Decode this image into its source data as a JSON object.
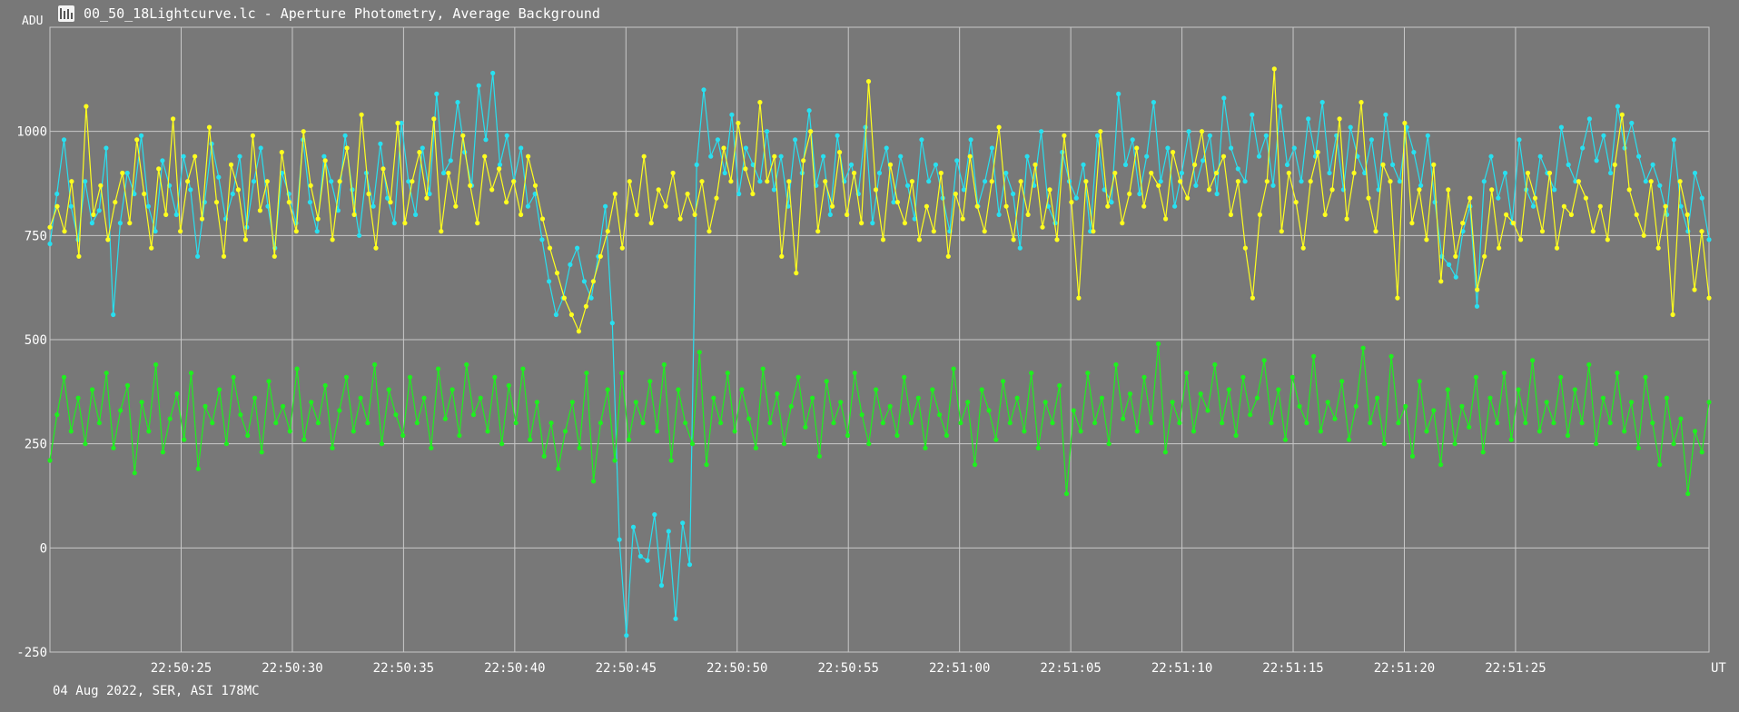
{
  "window": {
    "title": "00_50_18Lightcurve.lc - Aperture Photometry, Average Background",
    "footer": "04 Aug 2022, SER, ASI 178MC"
  },
  "colors": {
    "background": "#787878",
    "grid": "#c8c8c8",
    "text": "#ffffff",
    "series_cyan": "#28e0f0",
    "series_yellow": "#ffff1e",
    "series_green": "#1ef01e"
  },
  "chart_data": {
    "type": "line",
    "title": "",
    "ylabel": "ADU",
    "xlabel": "UT",
    "ylim": [
      -250,
      1250
    ],
    "y_ticks": [
      -250,
      0,
      250,
      500,
      750,
      1000
    ],
    "x_range": [
      "22:50:19.1",
      "22:51:33.7"
    ],
    "x_ticks": [
      "22:50:25",
      "22:50:30",
      "22:50:35",
      "22:50:40",
      "22:50:45",
      "22:50:50",
      "22:50:55",
      "22:51:00",
      "22:51:05",
      "22:51:10",
      "22:51:15",
      "22:51:20",
      "22:51:25"
    ],
    "grid": true,
    "legend": "none",
    "series": [
      {
        "color": "cyan",
        "x_start": "22:50:19.1",
        "x_end": "22:51:33.7",
        "values": [
          730,
          850,
          980,
          820,
          740,
          880,
          780,
          810,
          960,
          560,
          780,
          900,
          850,
          990,
          820,
          760,
          930,
          870,
          800,
          940,
          860,
          700,
          830,
          970,
          890,
          790,
          850,
          940,
          770,
          880,
          960,
          820,
          720,
          900,
          850,
          780,
          980,
          830,
          760,
          940,
          880,
          810,
          990,
          860,
          750,
          900,
          820,
          970,
          840,
          780,
          1020,
          880,
          800,
          960,
          850,
          1090,
          900,
          930,
          1070,
          950,
          870,
          1110,
          980,
          1140,
          920,
          990,
          880,
          960,
          820,
          850,
          740,
          640,
          560,
          600,
          680,
          720,
          640,
          600,
          700,
          820,
          540,
          20,
          -210,
          50,
          -20,
          -30,
          80,
          -90,
          40,
          -170,
          60,
          -40,
          920,
          1100,
          940,
          980,
          900,
          1040,
          850,
          960,
          920,
          880,
          1000,
          860,
          940,
          820,
          980,
          900,
          1050,
          870,
          940,
          800,
          990,
          880,
          920,
          850,
          1010,
          780,
          900,
          960,
          830,
          940,
          870,
          790,
          980,
          880,
          920,
          840,
          760,
          930,
          860,
          980,
          820,
          880,
          960,
          800,
          900,
          850,
          720,
          940,
          870,
          1000,
          820,
          780,
          950,
          880,
          840,
          920,
          760,
          990,
          860,
          830,
          1090,
          920,
          980,
          850,
          940,
          1070,
          880,
          960,
          820,
          900,
          1000,
          870,
          930,
          990,
          850,
          1080,
          960,
          910,
          880,
          1040,
          940,
          990,
          870,
          1060,
          920,
          960,
          880,
          1030,
          940,
          1070,
          900,
          990,
          860,
          1010,
          940,
          900,
          980,
          860,
          1040,
          920,
          880,
          1010,
          950,
          870,
          990,
          830,
          700,
          680,
          650,
          760,
          820,
          580,
          880,
          940,
          840,
          900,
          780,
          980,
          860,
          820,
          940,
          900,
          860,
          1010,
          920,
          880,
          960,
          1030,
          930,
          990,
          900,
          1060,
          960,
          1020,
          940,
          880,
          920,
          870,
          800,
          980,
          820,
          760,
          900,
          840,
          740
        ]
      },
      {
        "color": "yellow",
        "x_start": "22:50:19.1",
        "x_end": "22:51:33.7",
        "values": [
          770,
          820,
          760,
          880,
          700,
          1060,
          800,
          870,
          740,
          830,
          900,
          780,
          980,
          850,
          720,
          910,
          800,
          1030,
          760,
          880,
          940,
          790,
          1010,
          830,
          700,
          920,
          860,
          740,
          990,
          810,
          880,
          700,
          950,
          830,
          760,
          1000,
          870,
          790,
          930,
          740,
          880,
          960,
          800,
          1040,
          850,
          720,
          910,
          830,
          1020,
          780,
          880,
          950,
          840,
          1030,
          760,
          900,
          820,
          990,
          870,
          780,
          940,
          860,
          910,
          830,
          880,
          800,
          940,
          870,
          790,
          720,
          660,
          600,
          560,
          520,
          580,
          640,
          700,
          760,
          850,
          720,
          880,
          800,
          940,
          780,
          860,
          820,
          900,
          790,
          850,
          800,
          880,
          760,
          840,
          960,
          880,
          1020,
          910,
          850,
          1070,
          880,
          940,
          700,
          880,
          660,
          930,
          1000,
          760,
          880,
          820,
          950,
          800,
          900,
          780,
          1120,
          860,
          740,
          920,
          830,
          780,
          880,
          740,
          820,
          760,
          900,
          700,
          850,
          790,
          940,
          820,
          760,
          880,
          1010,
          820,
          740,
          880,
          800,
          920,
          770,
          860,
          740,
          990,
          830,
          600,
          880,
          760,
          1000,
          820,
          900,
          780,
          850,
          960,
          820,
          900,
          870,
          790,
          950,
          880,
          840,
          920,
          1000,
          860,
          900,
          940,
          800,
          880,
          720,
          600,
          800,
          880,
          1150,
          760,
          900,
          830,
          720,
          880,
          950,
          800,
          860,
          1030,
          790,
          900,
          1070,
          840,
          760,
          920,
          880,
          600,
          1020,
          780,
          860,
          740,
          920,
          640,
          860,
          700,
          780,
          840,
          620,
          700,
          860,
          720,
          800,
          780,
          740,
          900,
          840,
          760,
          900,
          720,
          820,
          800,
          880,
          840,
          760,
          820,
          740,
          920,
          1040,
          860,
          800,
          750,
          880,
          720,
          820,
          560,
          880,
          800,
          620,
          760,
          600
        ]
      },
      {
        "color": "green",
        "x_start": "22:50:19.1",
        "x_end": "22:51:33.7",
        "values": [
          210,
          320,
          410,
          280,
          360,
          250,
          380,
          300,
          420,
          240,
          330,
          390,
          180,
          350,
          280,
          440,
          230,
          310,
          370,
          260,
          420,
          190,
          340,
          300,
          380,
          250,
          410,
          320,
          270,
          360,
          230,
          400,
          300,
          340,
          280,
          430,
          260,
          350,
          300,
          390,
          240,
          330,
          410,
          280,
          360,
          300,
          440,
          250,
          380,
          320,
          270,
          410,
          300,
          360,
          240,
          430,
          310,
          380,
          270,
          440,
          320,
          360,
          280,
          410,
          250,
          390,
          300,
          430,
          260,
          350,
          220,
          300,
          190,
          280,
          350,
          240,
          420,
          160,
          300,
          380,
          210,
          420,
          260,
          350,
          300,
          400,
          280,
          440,
          210,
          380,
          300,
          250,
          470,
          200,
          360,
          300,
          420,
          280,
          380,
          310,
          240,
          430,
          300,
          370,
          250,
          340,
          410,
          290,
          360,
          220,
          400,
          300,
          350,
          270,
          420,
          320,
          250,
          380,
          300,
          340,
          270,
          410,
          300,
          360,
          240,
          380,
          320,
          270,
          430,
          300,
          350,
          200,
          380,
          330,
          260,
          400,
          300,
          360,
          280,
          420,
          240,
          350,
          300,
          390,
          130,
          330,
          280,
          420,
          300,
          360,
          250,
          440,
          310,
          370,
          280,
          410,
          300,
          490,
          230,
          350,
          300,
          420,
          280,
          370,
          330,
          440,
          300,
          380,
          270,
          410,
          320,
          360,
          450,
          300,
          380,
          260,
          410,
          340,
          300,
          460,
          280,
          350,
          310,
          400,
          260,
          340,
          480,
          300,
          360,
          250,
          460,
          300,
          340,
          220,
          400,
          280,
          330,
          200,
          380,
          250,
          340,
          290,
          410,
          230,
          360,
          300,
          420,
          260,
          380,
          300,
          450,
          280,
          350,
          300,
          410,
          270,
          380,
          300,
          440,
          250,
          360,
          300,
          420,
          280,
          350,
          240,
          410,
          300,
          200,
          360,
          250,
          310,
          130,
          280,
          230,
          350
        ]
      }
    ]
  }
}
